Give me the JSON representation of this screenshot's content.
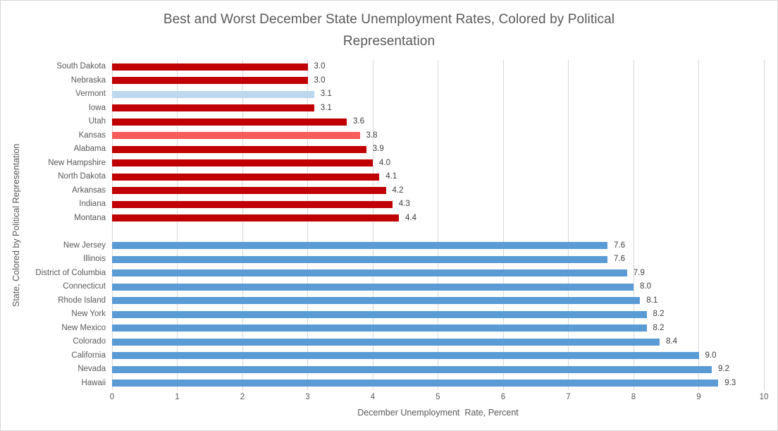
{
  "colors": {
    "background": "#FFFFFF",
    "frame_border": "#D7D7D7",
    "gridline": "#D9D9D9",
    "title_text": "#595959",
    "axis_text": "#595959",
    "value_label_text": "#404040"
  },
  "chart_data": {
    "type": "bar",
    "orientation": "horizontal",
    "title": "Best and Worst December State Unemployment Rates, Colored by Political Representation",
    "title_lines": [
      "Best and Worst December State Unemployment Rates, Colored by Political",
      "Representation"
    ],
    "xlabel": "December Unemployment  Rate, Percent",
    "ylabel": "State, Colored by Political Representation",
    "xlim": [
      0,
      10
    ],
    "xticks": [
      0,
      1,
      2,
      3,
      4,
      5,
      6,
      7,
      8,
      9,
      10
    ],
    "gridlines": "vertical",
    "legend": "none",
    "bar_color_palette": {
      "dark_red": "#C00000",
      "light_blue": "#BDD7EE",
      "salmon": "#F85B5B",
      "blue": "#5B9BD5"
    },
    "groups": [
      {
        "name": "lowest-rates",
        "bars": [
          {
            "state": "South Dakota",
            "value": 3.0,
            "label": "3.0",
            "color": "dark_red"
          },
          {
            "state": "Nebraska",
            "value": 3.0,
            "label": "3.0",
            "color": "dark_red"
          },
          {
            "state": "Vermont",
            "value": 3.1,
            "label": "3.1",
            "color": "light_blue"
          },
          {
            "state": "Iowa",
            "value": 3.1,
            "label": "3.1",
            "color": "dark_red"
          },
          {
            "state": "Utah",
            "value": 3.6,
            "label": "3.6",
            "color": "dark_red"
          },
          {
            "state": "Kansas",
            "value": 3.8,
            "label": "3.8",
            "color": "salmon"
          },
          {
            "state": "Alabama",
            "value": 3.9,
            "label": "3.9",
            "color": "dark_red"
          },
          {
            "state": "New Hampshire",
            "value": 4.0,
            "label": "4.0",
            "color": "dark_red"
          },
          {
            "state": "North Dakota",
            "value": 4.1,
            "label": "4.1",
            "color": "dark_red"
          },
          {
            "state": "Arkansas",
            "value": 4.2,
            "label": "4.2",
            "color": "dark_red"
          },
          {
            "state": "Indiana",
            "value": 4.3,
            "label": "4.3",
            "color": "dark_red"
          },
          {
            "state": "Montana",
            "value": 4.4,
            "label": "4.4",
            "color": "dark_red"
          }
        ]
      },
      {
        "name": "highest-rates",
        "bars": [
          {
            "state": "New Jersey",
            "value": 7.6,
            "label": "7.6",
            "color": "blue"
          },
          {
            "state": "Illinois",
            "value": 7.6,
            "label": "7.6",
            "color": "blue"
          },
          {
            "state": "District of Columbia",
            "value": 7.9,
            "label": "7.9",
            "color": "blue"
          },
          {
            "state": "Connecticut",
            "value": 8.0,
            "label": "8.0",
            "color": "blue"
          },
          {
            "state": "Rhode Island",
            "value": 8.1,
            "label": "8.1",
            "color": "blue"
          },
          {
            "state": "New York",
            "value": 8.2,
            "label": "8.2",
            "color": "blue"
          },
          {
            "state": "New Mexico",
            "value": 8.2,
            "label": "8.2",
            "color": "blue"
          },
          {
            "state": "Colorado",
            "value": 8.4,
            "label": "8.4",
            "color": "blue"
          },
          {
            "state": "California",
            "value": 9.0,
            "label": "9.0",
            "color": "blue"
          },
          {
            "state": "Nevada",
            "value": 9.2,
            "label": "9.2",
            "color": "blue"
          },
          {
            "state": "Hawaii",
            "value": 9.3,
            "label": "9.3",
            "color": "blue"
          }
        ]
      }
    ]
  }
}
